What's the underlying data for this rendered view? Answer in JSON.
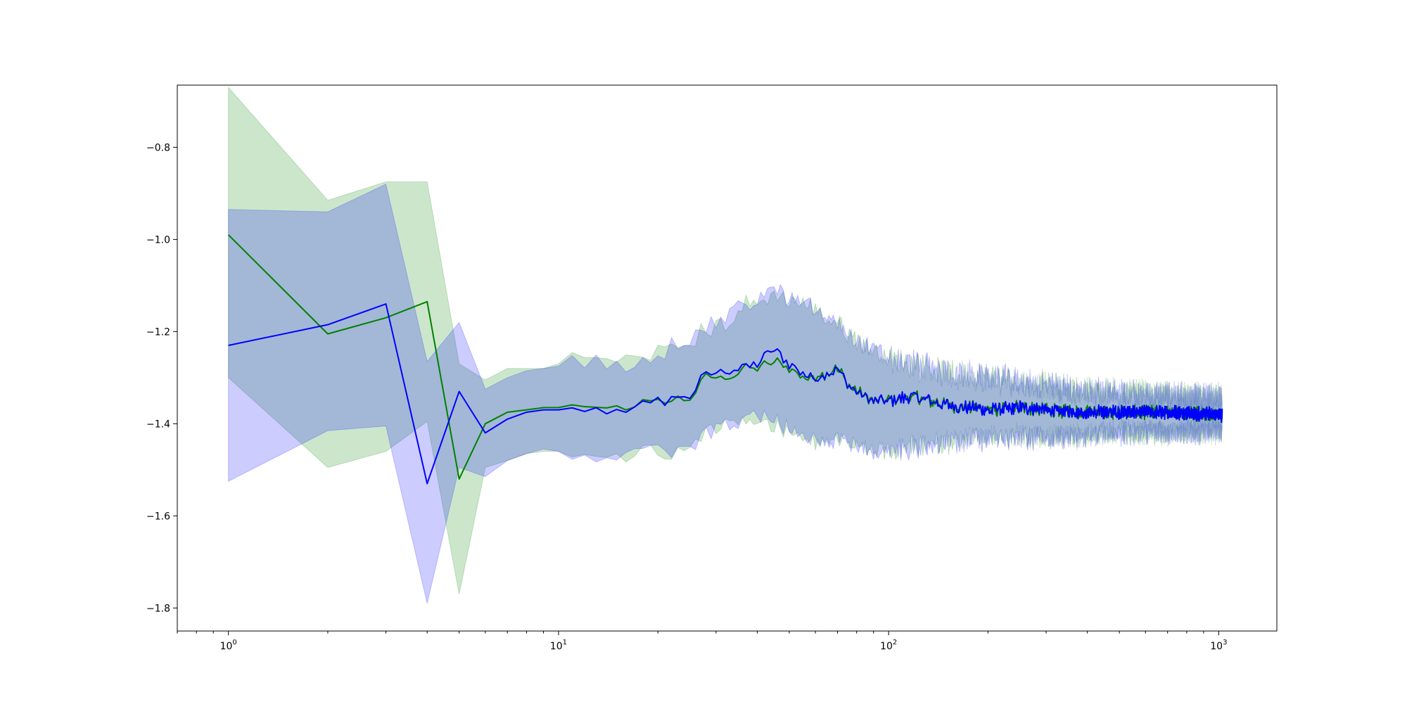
{
  "chart_data": {
    "type": "line",
    "title": "",
    "xlabel": "",
    "ylabel": "",
    "x_scale": "log",
    "xlim": [
      0.7,
      1500
    ],
    "ylim": [
      -1.85,
      -0.665
    ],
    "grid": false,
    "legend": "none",
    "x_ticks": [
      {
        "value": 1,
        "base": "10",
        "exp": "0"
      },
      {
        "value": 10,
        "base": "10",
        "exp": "1"
      },
      {
        "value": 100,
        "base": "10",
        "exp": "2"
      },
      {
        "value": 1000,
        "base": "10",
        "exp": "3"
      }
    ],
    "y_ticks": [
      {
        "value": -0.8,
        "label": "−0.8"
      },
      {
        "value": -1.0,
        "label": "−1.0"
      },
      {
        "value": -1.2,
        "label": "−1.2"
      },
      {
        "value": -1.4,
        "label": "−1.4"
      },
      {
        "value": -1.6,
        "label": "−1.6"
      },
      {
        "value": -1.8,
        "label": "−1.8"
      }
    ],
    "n_points": 1024,
    "series": [
      {
        "color": "#008000",
        "band_color": "#008000",
        "band_opacity": 0.2,
        "x": [
          1,
          2,
          3,
          4,
          5,
          6,
          7,
          8,
          9,
          10,
          12,
          15,
          18,
          22,
          25,
          28,
          32,
          36,
          40,
          45,
          50,
          55,
          60,
          65,
          70,
          75,
          80,
          90,
          100,
          120,
          150,
          200,
          250,
          300,
          400,
          500,
          700,
          1000,
          1024
        ],
        "mean": [
          -0.99,
          -1.205,
          -1.17,
          -1.135,
          -1.52,
          -1.4,
          -1.375,
          -1.37,
          -1.365,
          -1.365,
          -1.365,
          -1.365,
          -1.355,
          -1.345,
          -1.34,
          -1.3,
          -1.3,
          -1.285,
          -1.28,
          -1.265,
          -1.28,
          -1.3,
          -1.3,
          -1.29,
          -1.28,
          -1.31,
          -1.33,
          -1.35,
          -1.35,
          -1.34,
          -1.36,
          -1.37,
          -1.365,
          -1.37,
          -1.375,
          -1.375,
          -1.375,
          -1.38,
          -1.38
        ],
        "upper": [
          -0.67,
          -0.915,
          -0.875,
          -0.875,
          -1.27,
          -1.305,
          -1.28,
          -1.28,
          -1.28,
          -1.27,
          -1.255,
          -1.265,
          -1.25,
          -1.24,
          -1.22,
          -1.2,
          -1.18,
          -1.15,
          -1.14,
          -1.12,
          -1.13,
          -1.14,
          -1.15,
          -1.17,
          -1.18,
          -1.2,
          -1.22,
          -1.24,
          -1.26,
          -1.27,
          -1.29,
          -1.3,
          -1.31,
          -1.32,
          -1.33,
          -1.335,
          -1.34,
          -1.345,
          -1.345
        ],
        "lower": [
          -1.3,
          -1.495,
          -1.46,
          -1.395,
          -1.77,
          -1.495,
          -1.48,
          -1.465,
          -1.46,
          -1.46,
          -1.47,
          -1.47,
          -1.46,
          -1.46,
          -1.45,
          -1.42,
          -1.4,
          -1.395,
          -1.395,
          -1.41,
          -1.42,
          -1.43,
          -1.44,
          -1.44,
          -1.43,
          -1.44,
          -1.45,
          -1.46,
          -1.46,
          -1.45,
          -1.44,
          -1.43,
          -1.43,
          -1.43,
          -1.425,
          -1.42,
          -1.42,
          -1.415,
          -1.415
        ]
      },
      {
        "color": "#0000ff",
        "band_color": "#0000ff",
        "band_opacity": 0.2,
        "x": [
          1,
          2,
          3,
          4,
          5,
          6,
          7,
          8,
          9,
          10,
          12,
          15,
          18,
          22,
          25,
          28,
          32,
          36,
          40,
          45,
          50,
          55,
          60,
          65,
          70,
          75,
          80,
          90,
          100,
          120,
          150,
          200,
          250,
          300,
          400,
          500,
          700,
          1000,
          1024
        ],
        "mean": [
          -1.23,
          -1.185,
          -1.14,
          -1.53,
          -1.33,
          -1.42,
          -1.39,
          -1.375,
          -1.37,
          -1.37,
          -1.365,
          -1.37,
          -1.36,
          -1.345,
          -1.34,
          -1.29,
          -1.29,
          -1.275,
          -1.27,
          -1.24,
          -1.27,
          -1.29,
          -1.3,
          -1.29,
          -1.28,
          -1.31,
          -1.33,
          -1.35,
          -1.35,
          -1.34,
          -1.36,
          -1.37,
          -1.365,
          -1.37,
          -1.375,
          -1.375,
          -1.375,
          -1.38,
          -1.38
        ],
        "upper": [
          -0.935,
          -0.94,
          -0.88,
          -1.265,
          -1.18,
          -1.325,
          -1.3,
          -1.285,
          -1.28,
          -1.275,
          -1.265,
          -1.27,
          -1.255,
          -1.235,
          -1.215,
          -1.19,
          -1.17,
          -1.14,
          -1.13,
          -1.11,
          -1.13,
          -1.14,
          -1.15,
          -1.17,
          -1.18,
          -1.2,
          -1.22,
          -1.24,
          -1.26,
          -1.27,
          -1.29,
          -1.3,
          -1.31,
          -1.32,
          -1.33,
          -1.335,
          -1.34,
          -1.345,
          -1.345
        ],
        "lower": [
          -1.525,
          -1.415,
          -1.405,
          -1.79,
          -1.495,
          -1.515,
          -1.48,
          -1.465,
          -1.455,
          -1.46,
          -1.47,
          -1.475,
          -1.465,
          -1.46,
          -1.455,
          -1.42,
          -1.4,
          -1.39,
          -1.385,
          -1.39,
          -1.41,
          -1.42,
          -1.43,
          -1.44,
          -1.43,
          -1.44,
          -1.45,
          -1.46,
          -1.46,
          -1.45,
          -1.44,
          -1.43,
          -1.43,
          -1.43,
          -1.425,
          -1.42,
          -1.42,
          -1.415,
          -1.415
        ]
      }
    ]
  }
}
